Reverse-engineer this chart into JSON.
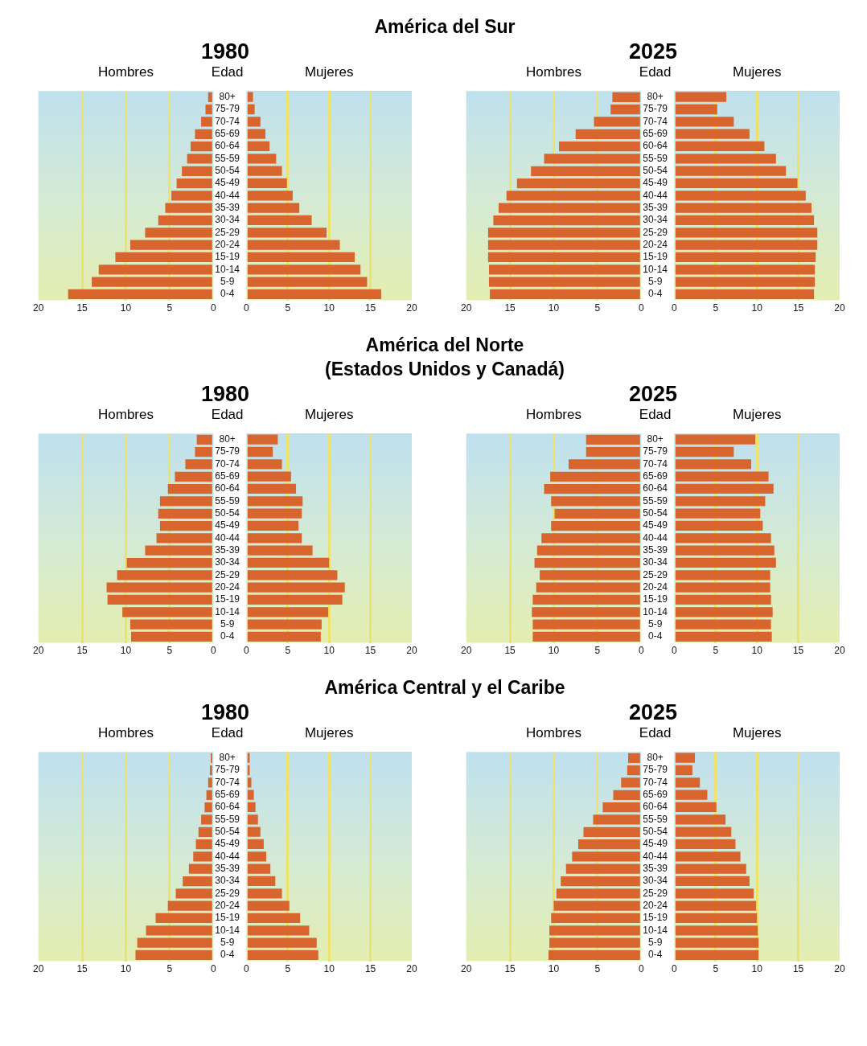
{
  "chart_data": [
    {
      "type": "other",
      "title": "América del Sur"
    },
    {
      "type": "bar",
      "orientation": "horizontal",
      "subtitle": "1980",
      "xlabel": "Hombres",
      "ylabel": "Edad",
      "categories": [
        "80+",
        "75-79",
        "70-74",
        "65-69",
        "60-64",
        "55-59",
        "50-54",
        "45-49",
        "40-44",
        "35-39",
        "30-34",
        "25-29",
        "20-24",
        "15-19",
        "10-14",
        "5-9",
        "0-4"
      ],
      "values": [
        0.6,
        0.9,
        1.4,
        2.1,
        2.6,
        3.0,
        3.6,
        4.2,
        4.8,
        5.5,
        6.3,
        7.8,
        9.5,
        11.2,
        13.1,
        13.9,
        16.6
      ],
      "color": "#d9652e",
      "xlim": [
        20,
        0
      ],
      "xticks": [
        20,
        15,
        10,
        5,
        0
      ],
      "grid": "x"
    },
    {
      "type": "bar",
      "orientation": "horizontal",
      "xlabel": "Mujeres",
      "categories": [
        null,
        null,
        null,
        null,
        null,
        null,
        null,
        null,
        null,
        null,
        null,
        null,
        null,
        null,
        null,
        null,
        null
      ],
      "values": [
        0.8,
        1.0,
        1.7,
        2.3,
        2.8,
        3.6,
        4.3,
        4.9,
        5.6,
        6.4,
        7.9,
        9.7,
        11.3,
        13.1,
        13.8,
        14.6,
        16.3
      ],
      "color": "#d9652e",
      "xlim": [
        0,
        20
      ],
      "xticks": [
        0,
        5,
        10,
        15,
        20
      ],
      "grid": "x",
      "tick_labels": "x"
    },
    {
      "type": "bar",
      "orientation": "horizontal",
      "subtitle": "2025",
      "xlabel": "Hombres",
      "ylabel": "Edad",
      "categories": [
        "80+",
        "75-79",
        "70-74",
        "65-69",
        "60-64",
        "55-59",
        "50-54",
        "45-49",
        "40-44",
        "35-39",
        "30-34",
        "25-29",
        "20-24",
        "15-19",
        "10-14",
        "5-9",
        "0-4"
      ],
      "values": [
        3.3,
        3.5,
        5.4,
        7.5,
        9.4,
        11.1,
        12.6,
        14.2,
        15.4,
        16.3,
        16.9,
        17.5,
        17.5,
        17.5,
        17.4,
        17.4,
        17.3
      ],
      "color": "#d9652e",
      "xlim": [
        20,
        0
      ],
      "xticks": [
        20,
        15,
        10,
        5,
        0
      ],
      "grid": "x"
    },
    {
      "type": "bar",
      "orientation": "horizontal",
      "xlabel": "Mujeres",
      "categories": [
        null,
        null,
        null,
        null,
        null,
        null,
        null,
        null,
        null,
        null,
        null,
        null,
        null,
        null,
        null,
        null,
        null
      ],
      "values": [
        6.3,
        5.2,
        7.2,
        9.1,
        10.9,
        12.3,
        13.5,
        14.9,
        15.9,
        16.6,
        16.9,
        17.3,
        17.3,
        17.1,
        17.0,
        17.0,
        16.9
      ],
      "color": "#d9652e",
      "xlim": [
        0,
        20
      ],
      "xticks": [
        0,
        5,
        10,
        15,
        20
      ],
      "grid": "x",
      "tick_labels": "x"
    },
    {
      "type": "other",
      "title": "América del Norte\n(Estados Unidos y Canadá)"
    },
    {
      "type": "bar",
      "orientation": "horizontal",
      "subtitle": "1980",
      "xlabel": "Hombres",
      "ylabel": "Edad",
      "categories": [
        "80+",
        "75-79",
        "70-74",
        "65-69",
        "60-64",
        "55-59",
        "50-54",
        "45-49",
        "40-44",
        "35-39",
        "30-34",
        "25-29",
        "20-24",
        "15-19",
        "10-14",
        "5-9",
        "0-4"
      ],
      "values": [
        1.9,
        2.1,
        3.2,
        4.4,
        5.2,
        6.1,
        6.3,
        6.1,
        6.5,
        7.8,
        9.9,
        11.0,
        12.2,
        12.1,
        10.4,
        9.5,
        9.4
      ],
      "color": "#d9652e",
      "xlim": [
        20,
        0
      ],
      "xticks": [
        20,
        15,
        10,
        5,
        0
      ],
      "grid": "x"
    },
    {
      "type": "bar",
      "orientation": "horizontal",
      "xlabel": "Mujeres",
      "categories": [
        null,
        null,
        null,
        null,
        null,
        null,
        null,
        null,
        null,
        null,
        null,
        null,
        null,
        null,
        null,
        null,
        null
      ],
      "values": [
        3.8,
        3.2,
        4.3,
        5.4,
        6.0,
        6.8,
        6.7,
        6.3,
        6.7,
        8.0,
        10.0,
        11.0,
        11.9,
        11.6,
        9.9,
        9.1,
        9.0
      ],
      "color": "#d9652e",
      "xlim": [
        0,
        20
      ],
      "xticks": [
        0,
        5,
        10,
        15,
        20
      ],
      "grid": "x",
      "tick_labels": "x"
    },
    {
      "type": "bar",
      "orientation": "horizontal",
      "subtitle": "2025",
      "xlabel": "Hombres",
      "ylabel": "Edad",
      "categories": [
        "80+",
        "75-79",
        "70-74",
        "65-69",
        "60-64",
        "55-59",
        "50-54",
        "45-49",
        "40-44",
        "35-39",
        "30-34",
        "25-29",
        "20-24",
        "15-19",
        "10-14",
        "5-9",
        "0-4"
      ],
      "values": [
        6.3,
        6.3,
        8.3,
        10.4,
        11.1,
        10.3,
        9.9,
        10.3,
        11.4,
        11.9,
        12.2,
        11.6,
        12.0,
        12.4,
        12.5,
        12.4,
        12.4
      ],
      "color": "#d9652e",
      "xlim": [
        20,
        0
      ],
      "xticks": [
        20,
        15,
        10,
        5,
        0
      ],
      "grid": "x"
    },
    {
      "type": "bar",
      "orientation": "horizontal",
      "xlabel": "Mujeres",
      "categories": [
        null,
        null,
        null,
        null,
        null,
        null,
        null,
        null,
        null,
        null,
        null,
        null,
        null,
        null,
        null,
        null,
        null
      ],
      "values": [
        9.8,
        7.2,
        9.3,
        11.4,
        12.0,
        11.0,
        10.4,
        10.7,
        11.7,
        12.1,
        12.3,
        11.6,
        11.6,
        11.7,
        11.9,
        11.7,
        11.8
      ],
      "color": "#d9652e",
      "xlim": [
        0,
        20
      ],
      "xticks": [
        0,
        5,
        10,
        15,
        20
      ],
      "grid": "x",
      "tick_labels": "x"
    },
    {
      "type": "other",
      "title": "América Central y el Caribe"
    },
    {
      "type": "bar",
      "orientation": "horizontal",
      "subtitle": "1980",
      "xlabel": "Hombres",
      "ylabel": "Edad",
      "categories": [
        "80+",
        "75-79",
        "70-74",
        "65-69",
        "60-64",
        "55-59",
        "50-54",
        "45-49",
        "40-44",
        "35-39",
        "30-34",
        "25-29",
        "20-24",
        "15-19",
        "10-14",
        "5-9",
        "0-4"
      ],
      "values": [
        0.3,
        0.4,
        0.6,
        0.8,
        1.0,
        1.4,
        1.7,
        2.0,
        2.3,
        2.8,
        3.5,
        4.3,
        5.2,
        6.6,
        7.7,
        8.7,
        8.9
      ],
      "color": "#d9652e",
      "xlim": [
        20,
        0
      ],
      "xticks": [
        20,
        15,
        10,
        5,
        0
      ],
      "grid": "x"
    },
    {
      "type": "bar",
      "orientation": "horizontal",
      "xlabel": "Mujeres",
      "categories": [
        null,
        null,
        null,
        null,
        null,
        null,
        null,
        null,
        null,
        null,
        null,
        null,
        null,
        null,
        null,
        null,
        null
      ],
      "values": [
        0.4,
        0.4,
        0.6,
        0.9,
        1.1,
        1.4,
        1.7,
        2.1,
        2.4,
        2.9,
        3.5,
        4.3,
        5.2,
        6.5,
        7.6,
        8.5,
        8.7
      ],
      "color": "#d9652e",
      "xlim": [
        0,
        20
      ],
      "xticks": [
        0,
        5,
        10,
        15,
        20
      ],
      "grid": "x",
      "tick_labels": "x"
    },
    {
      "type": "bar",
      "orientation": "horizontal",
      "subtitle": "2025",
      "xlabel": "Hombres",
      "ylabel": "Edad",
      "categories": [
        "80+",
        "75-79",
        "70-74",
        "65-69",
        "60-64",
        "55-59",
        "50-54",
        "45-49",
        "40-44",
        "35-39",
        "30-34",
        "25-29",
        "20-24",
        "15-19",
        "10-14",
        "5-9",
        "0-4"
      ],
      "values": [
        1.5,
        1.6,
        2.3,
        3.2,
        4.4,
        5.5,
        6.6,
        7.2,
        7.9,
        8.6,
        9.2,
        9.7,
        10.0,
        10.3,
        10.5,
        10.5,
        10.6
      ],
      "color": "#d9652e",
      "xlim": [
        20,
        0
      ],
      "xticks": [
        20,
        15,
        10,
        5,
        0
      ],
      "grid": "x"
    },
    {
      "type": "bar",
      "orientation": "horizontal",
      "xlabel": "Mujeres",
      "categories": [
        null,
        null,
        null,
        null,
        null,
        null,
        null,
        null,
        null,
        null,
        null,
        null,
        null,
        null,
        null,
        null,
        null
      ],
      "values": [
        2.5,
        2.2,
        3.1,
        4.0,
        5.1,
        6.2,
        6.9,
        7.4,
        8.0,
        8.7,
        9.1,
        9.6,
        9.9,
        10.0,
        10.1,
        10.2,
        10.2
      ],
      "color": "#d9652e",
      "xlim": [
        0,
        20
      ],
      "xticks": [
        0,
        5,
        10,
        15,
        20
      ],
      "grid": "x",
      "tick_labels": "x"
    }
  ]
}
